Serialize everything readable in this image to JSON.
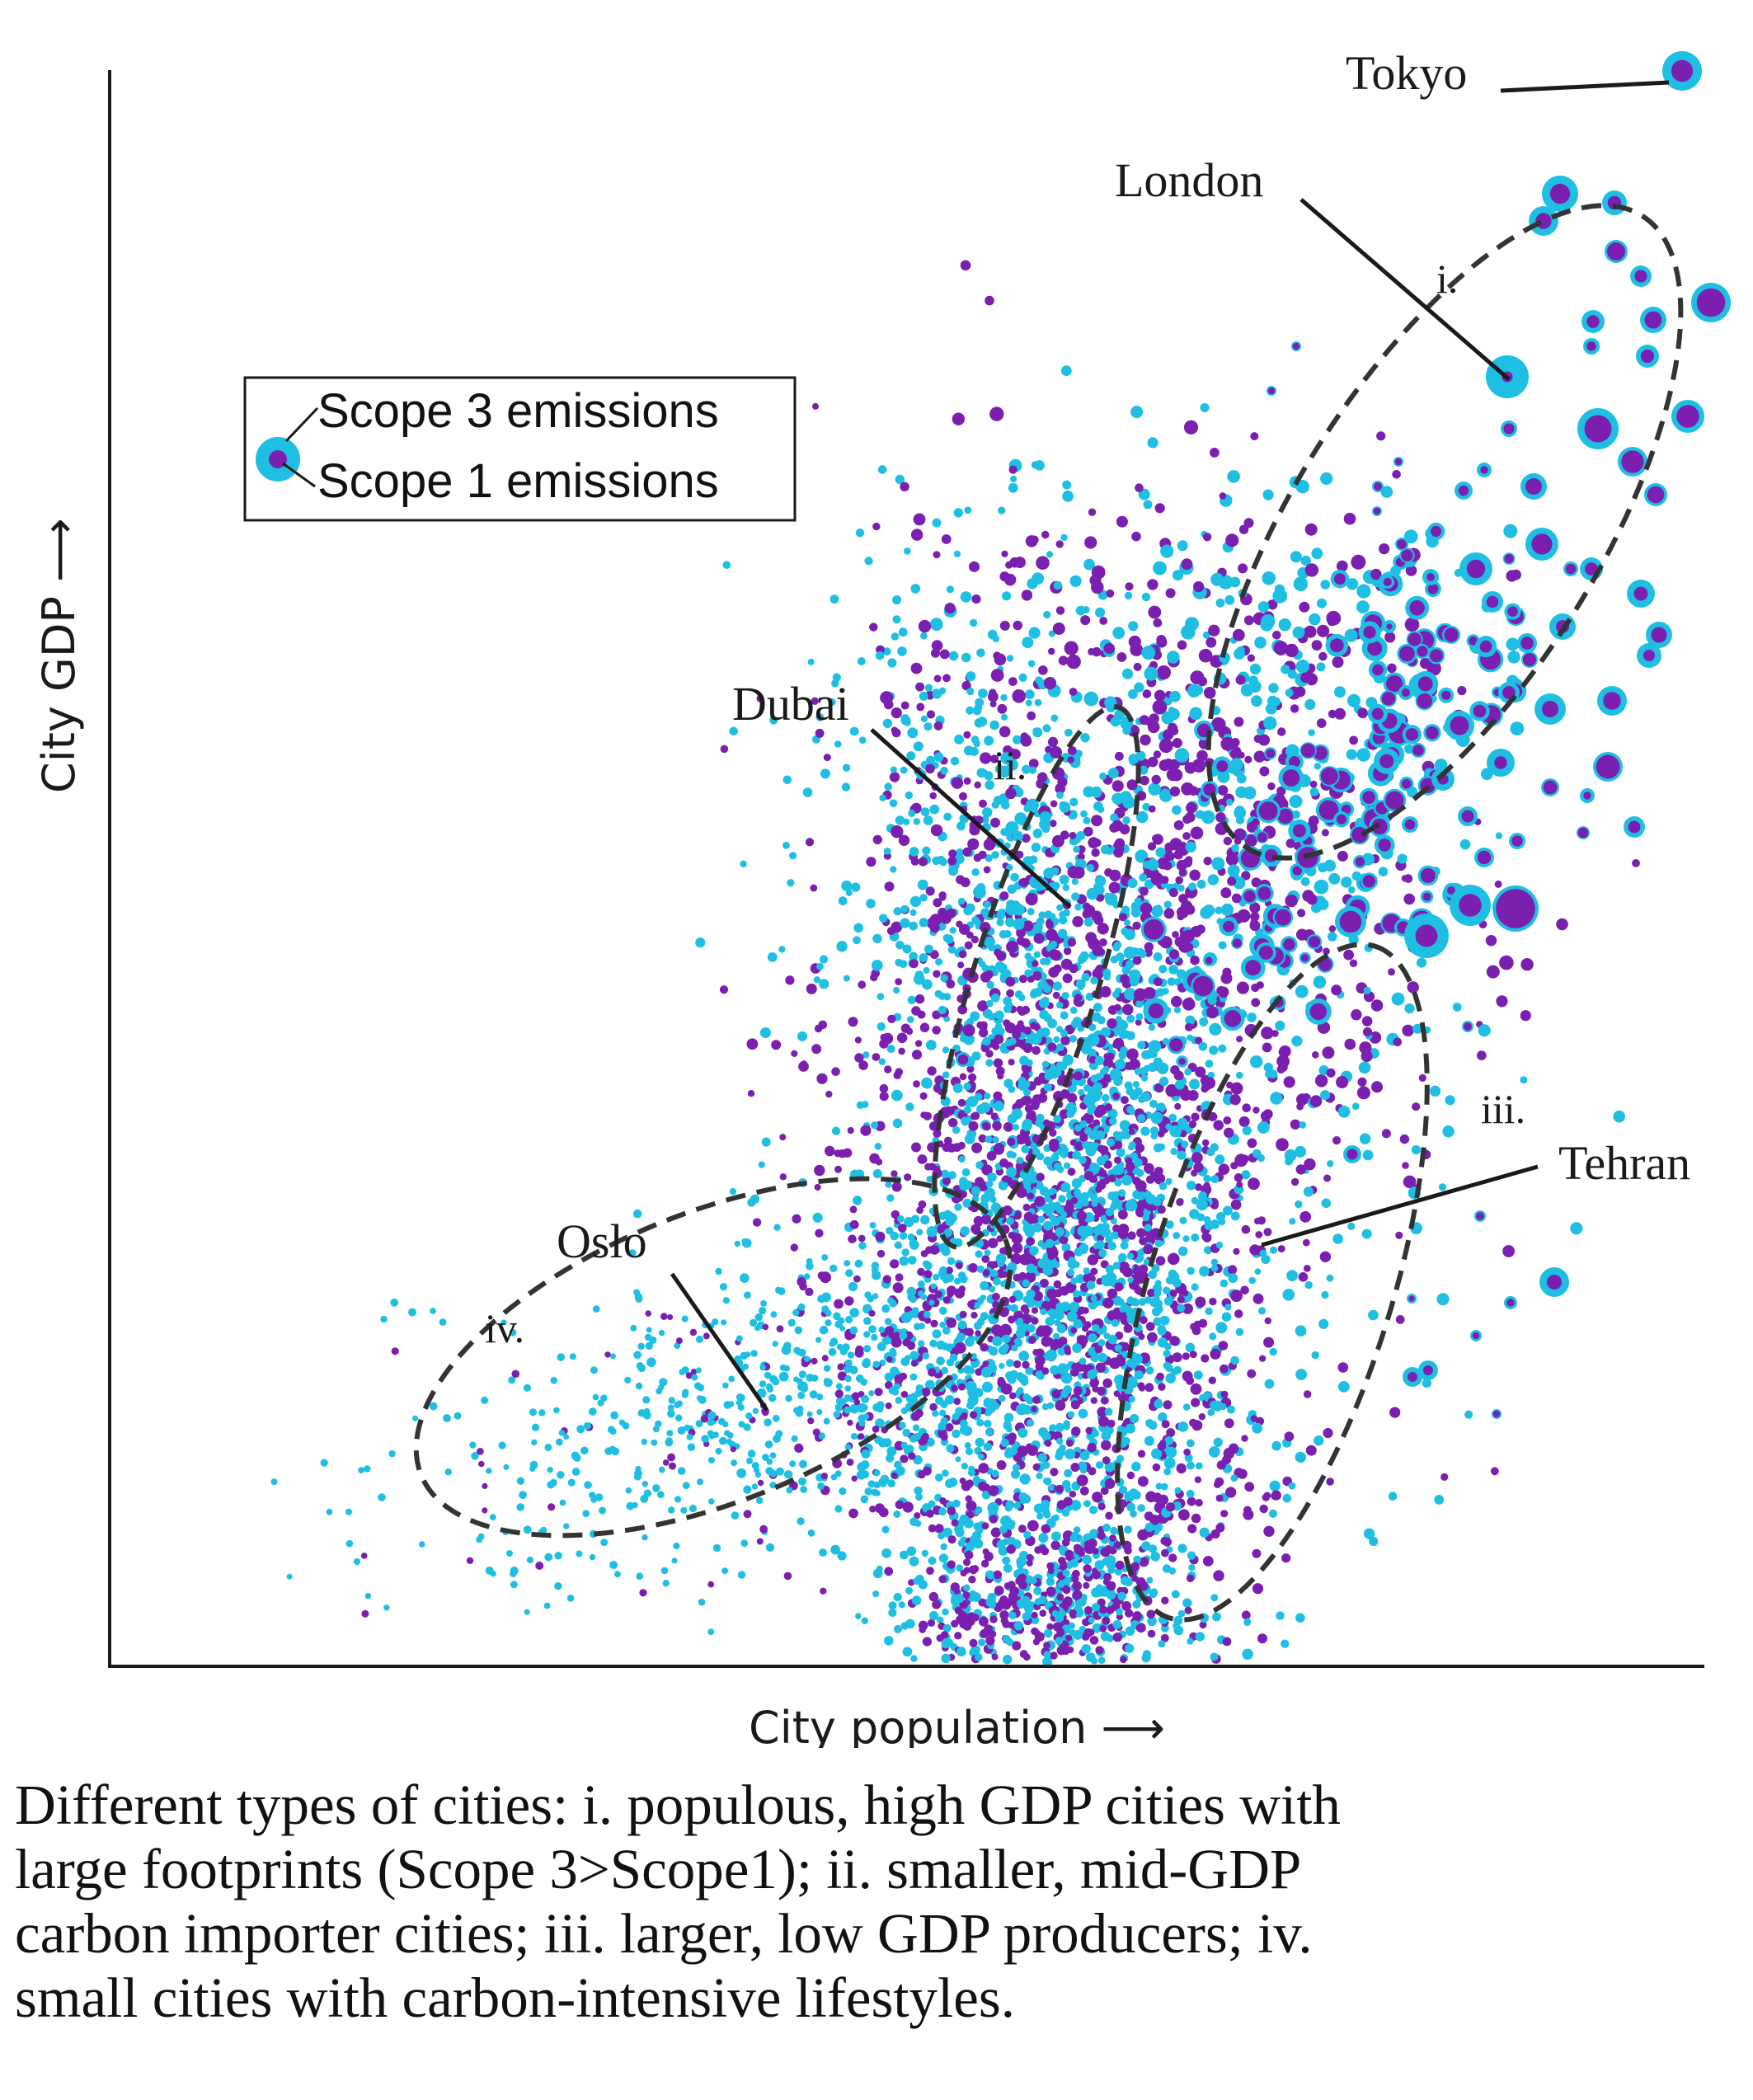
{
  "colors": {
    "scope3": "#1ebfe3",
    "scope1": "#7a1fb0",
    "axis": "#1a1a1a",
    "ellipse": "#333333"
  },
  "legend": {
    "scope3_label": "Scope 3 emissions",
    "scope1_label": "Scope 1 emissions"
  },
  "chart_data": {
    "type": "scatter",
    "title": "",
    "xlabel": "City population ⟶",
    "ylabel": "City GDP ⟶",
    "grid": false,
    "legend_position": "top-left",
    "marker": "nested circles: outer = Scope 3 emissions, inner = Scope 1 emissions",
    "series": [
      {
        "name": "Scope 3 emissions"
      },
      {
        "name": "Scope 1 emissions"
      }
    ],
    "clusters": [
      {
        "id": "i.",
        "example_city": "London"
      },
      {
        "id": "ii.",
        "example_city": "Dubai"
      },
      {
        "id": "iii.",
        "example_city": "Tehran"
      },
      {
        "id": "iv.",
        "example_city": "Oslo"
      }
    ],
    "labeled_cities": [
      "Tokyo",
      "London",
      "Dubai",
      "Tehran",
      "Oslo"
    ]
  },
  "caption_lines": [
    "Different types of cities: i. populous, high GDP cities with",
    "large footprints (Scope 3>Scope1); ii. smaller, mid-GDP",
    "carbon importer cities; iii.  larger, low GDP producers; iv.",
    "small cities with carbon-intensive lifestyles."
  ]
}
